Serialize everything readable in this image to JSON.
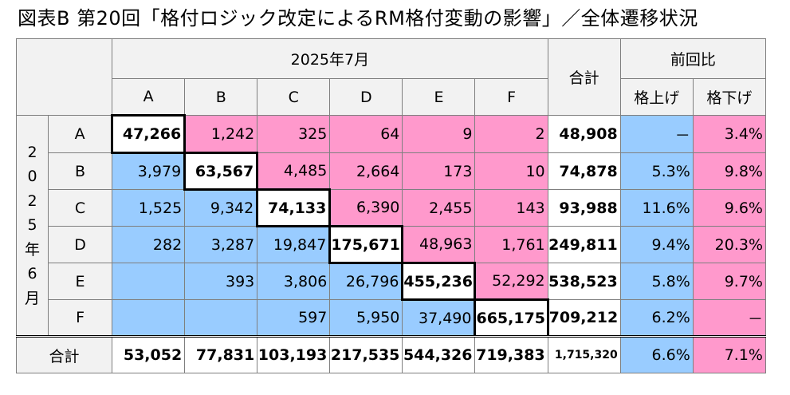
{
  "title": "図表B 第20回「格付ロジック改定によるRM格付変動の影響」／全体遷移状況",
  "header": {
    "period_to": "2025年7月",
    "total": "合計",
    "prev_ratio": "前回比",
    "up": "格上げ",
    "down": "格下げ",
    "cols": [
      "A",
      "B",
      "C",
      "D",
      "E",
      "F"
    ]
  },
  "period_from": [
    "2",
    "0",
    "2",
    "5",
    "年",
    "6",
    "月"
  ],
  "rows": [
    {
      "label": "A",
      "cells": [
        "47,266",
        "1,242",
        "325",
        "64",
        "9",
        "2"
      ],
      "total": "48,908",
      "up": "－",
      "down": "3.4%"
    },
    {
      "label": "B",
      "cells": [
        "3,979",
        "63,567",
        "4,485",
        "2,664",
        "173",
        "10"
      ],
      "total": "74,878",
      "up": "5.3%",
      "down": "9.8%"
    },
    {
      "label": "C",
      "cells": [
        "1,525",
        "9,342",
        "74,133",
        "6,390",
        "2,455",
        "143"
      ],
      "total": "93,988",
      "up": "11.6%",
      "down": "9.6%"
    },
    {
      "label": "D",
      "cells": [
        "282",
        "3,287",
        "19,847",
        "175,671",
        "48,963",
        "1,761"
      ],
      "total": "249,811",
      "up": "9.4%",
      "down": "20.3%"
    },
    {
      "label": "E",
      "cells": [
        "",
        "393",
        "3,806",
        "26,796",
        "455,236",
        "52,292"
      ],
      "total": "538,523",
      "up": "5.8%",
      "down": "9.7%"
    },
    {
      "label": "F",
      "cells": [
        "",
        "",
        "597",
        "5,950",
        "37,490",
        "665,175"
      ],
      "total": "709,212",
      "up": "6.2%",
      "down": "－"
    }
  ],
  "totals": {
    "label": "合計",
    "cells": [
      "53,052",
      "77,831",
      "103,193",
      "217,535",
      "544,326",
      "719,383"
    ],
    "total": "1,715,320",
    "up": "6.6%",
    "down": "7.1%"
  },
  "colors": {
    "upgrade": "#99ccff",
    "downgrade": "#ff99cc",
    "header": "#f2f2f2"
  }
}
